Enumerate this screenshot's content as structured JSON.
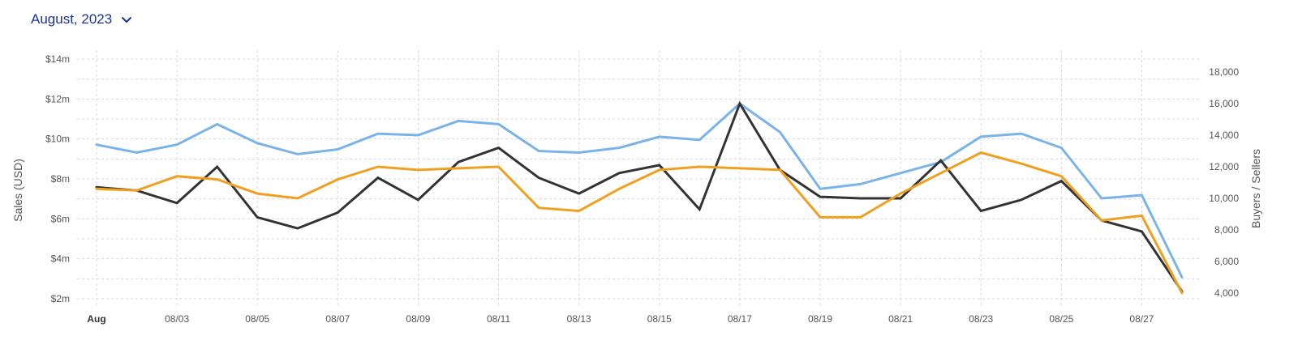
{
  "header": {
    "month_label": "August, 2023"
  },
  "chart_data": {
    "type": "line",
    "x": [
      "08/01",
      "08/02",
      "08/03",
      "08/04",
      "08/05",
      "08/06",
      "08/07",
      "08/08",
      "08/09",
      "08/10",
      "08/11",
      "08/12",
      "08/13",
      "08/14",
      "08/15",
      "08/16",
      "08/17",
      "08/18",
      "08/19",
      "08/20",
      "08/21",
      "08/22",
      "08/23",
      "08/24",
      "08/25",
      "08/26",
      "08/27",
      "08/28"
    ],
    "x_tick_labels": [
      "Aug",
      "08/03",
      "08/05",
      "08/07",
      "08/09",
      "08/11",
      "08/13",
      "08/15",
      "08/17",
      "08/19",
      "08/21",
      "08/23",
      "08/25",
      "08/27"
    ],
    "y_left": {
      "label": "Sales (USD)",
      "ticks": [
        "$2m",
        "$4m",
        "$6m",
        "$8m",
        "$10m",
        "$12m",
        "$14m"
      ],
      "range": [
        2,
        14
      ]
    },
    "y_right": {
      "label": "Buyers / Sellers",
      "ticks": [
        "4,000",
        "6,000",
        "8,000",
        "10,000",
        "12,000",
        "14,000",
        "16,000",
        "18,000"
      ],
      "range": [
        4000,
        18000
      ]
    },
    "grid": true,
    "series": [
      {
        "color": "#7ab3e8",
        "axis": "right",
        "values": [
          13400,
          12900,
          13400,
          14700,
          13500,
          12800,
          13100,
          14100,
          14000,
          14900,
          14700,
          13000,
          12900,
          13200,
          13900,
          13700,
          16000,
          14200,
          10600,
          10900,
          11600,
          12300,
          13900,
          14100,
          13200,
          10000,
          10200,
          5000
        ]
      },
      {
        "color": "#333333",
        "axis": "right",
        "values": [
          10700,
          10500,
          9700,
          12000,
          8800,
          8100,
          9100,
          11300,
          9900,
          12300,
          13200,
          11300,
          10300,
          11600,
          12100,
          9300,
          16000,
          11800,
          10100,
          10000,
          10000,
          12400,
          9200,
          9900,
          11100,
          8600,
          7900,
          4100
        ]
      },
      {
        "color": "#f0a020",
        "axis": "right",
        "values": [
          10600,
          10500,
          11400,
          11200,
          10300,
          10000,
          11200,
          12000,
          11800,
          11900,
          12000,
          9400,
          9200,
          10600,
          11800,
          12000,
          11900,
          11800,
          8800,
          8800,
          10300,
          11600,
          12900,
          12200,
          11400,
          8600,
          8900,
          4000
        ]
      }
    ]
  }
}
